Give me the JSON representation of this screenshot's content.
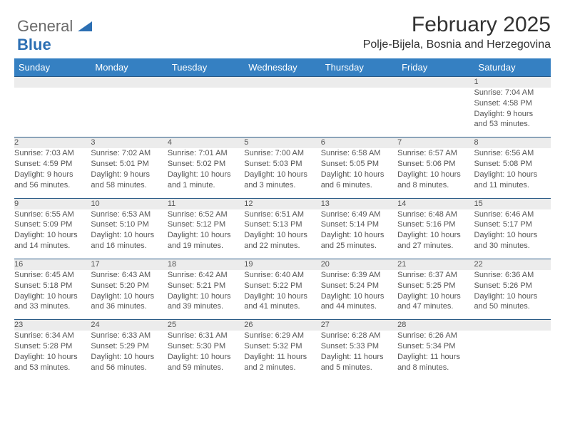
{
  "logo": {
    "word1": "General",
    "word2": "Blue"
  },
  "title": "February 2025",
  "location": "Polje-Bijela, Bosnia and Herzegovina",
  "header_bg": "#3580c2",
  "header_text_color": "#ffffff",
  "daynum_bg": "#ececec",
  "border_color": "#2a5a86",
  "body_text_color": "#555555",
  "font_family": "Arial, Helvetica, sans-serif",
  "days": [
    "Sunday",
    "Monday",
    "Tuesday",
    "Wednesday",
    "Thursday",
    "Friday",
    "Saturday"
  ],
  "weeks": [
    [
      null,
      null,
      null,
      null,
      null,
      null,
      {
        "n": "1",
        "sr": "Sunrise: 7:04 AM",
        "ss": "Sunset: 4:58 PM",
        "d1": "Daylight: 9 hours",
        "d2": "and 53 minutes."
      }
    ],
    [
      {
        "n": "2",
        "sr": "Sunrise: 7:03 AM",
        "ss": "Sunset: 4:59 PM",
        "d1": "Daylight: 9 hours",
        "d2": "and 56 minutes."
      },
      {
        "n": "3",
        "sr": "Sunrise: 7:02 AM",
        "ss": "Sunset: 5:01 PM",
        "d1": "Daylight: 9 hours",
        "d2": "and 58 minutes."
      },
      {
        "n": "4",
        "sr": "Sunrise: 7:01 AM",
        "ss": "Sunset: 5:02 PM",
        "d1": "Daylight: 10 hours",
        "d2": "and 1 minute."
      },
      {
        "n": "5",
        "sr": "Sunrise: 7:00 AM",
        "ss": "Sunset: 5:03 PM",
        "d1": "Daylight: 10 hours",
        "d2": "and 3 minutes."
      },
      {
        "n": "6",
        "sr": "Sunrise: 6:58 AM",
        "ss": "Sunset: 5:05 PM",
        "d1": "Daylight: 10 hours",
        "d2": "and 6 minutes."
      },
      {
        "n": "7",
        "sr": "Sunrise: 6:57 AM",
        "ss": "Sunset: 5:06 PM",
        "d1": "Daylight: 10 hours",
        "d2": "and 8 minutes."
      },
      {
        "n": "8",
        "sr": "Sunrise: 6:56 AM",
        "ss": "Sunset: 5:08 PM",
        "d1": "Daylight: 10 hours",
        "d2": "and 11 minutes."
      }
    ],
    [
      {
        "n": "9",
        "sr": "Sunrise: 6:55 AM",
        "ss": "Sunset: 5:09 PM",
        "d1": "Daylight: 10 hours",
        "d2": "and 14 minutes."
      },
      {
        "n": "10",
        "sr": "Sunrise: 6:53 AM",
        "ss": "Sunset: 5:10 PM",
        "d1": "Daylight: 10 hours",
        "d2": "and 16 minutes."
      },
      {
        "n": "11",
        "sr": "Sunrise: 6:52 AM",
        "ss": "Sunset: 5:12 PM",
        "d1": "Daylight: 10 hours",
        "d2": "and 19 minutes."
      },
      {
        "n": "12",
        "sr": "Sunrise: 6:51 AM",
        "ss": "Sunset: 5:13 PM",
        "d1": "Daylight: 10 hours",
        "d2": "and 22 minutes."
      },
      {
        "n": "13",
        "sr": "Sunrise: 6:49 AM",
        "ss": "Sunset: 5:14 PM",
        "d1": "Daylight: 10 hours",
        "d2": "and 25 minutes."
      },
      {
        "n": "14",
        "sr": "Sunrise: 6:48 AM",
        "ss": "Sunset: 5:16 PM",
        "d1": "Daylight: 10 hours",
        "d2": "and 27 minutes."
      },
      {
        "n": "15",
        "sr": "Sunrise: 6:46 AM",
        "ss": "Sunset: 5:17 PM",
        "d1": "Daylight: 10 hours",
        "d2": "and 30 minutes."
      }
    ],
    [
      {
        "n": "16",
        "sr": "Sunrise: 6:45 AM",
        "ss": "Sunset: 5:18 PM",
        "d1": "Daylight: 10 hours",
        "d2": "and 33 minutes."
      },
      {
        "n": "17",
        "sr": "Sunrise: 6:43 AM",
        "ss": "Sunset: 5:20 PM",
        "d1": "Daylight: 10 hours",
        "d2": "and 36 minutes."
      },
      {
        "n": "18",
        "sr": "Sunrise: 6:42 AM",
        "ss": "Sunset: 5:21 PM",
        "d1": "Daylight: 10 hours",
        "d2": "and 39 minutes."
      },
      {
        "n": "19",
        "sr": "Sunrise: 6:40 AM",
        "ss": "Sunset: 5:22 PM",
        "d1": "Daylight: 10 hours",
        "d2": "and 41 minutes."
      },
      {
        "n": "20",
        "sr": "Sunrise: 6:39 AM",
        "ss": "Sunset: 5:24 PM",
        "d1": "Daylight: 10 hours",
        "d2": "and 44 minutes."
      },
      {
        "n": "21",
        "sr": "Sunrise: 6:37 AM",
        "ss": "Sunset: 5:25 PM",
        "d1": "Daylight: 10 hours",
        "d2": "and 47 minutes."
      },
      {
        "n": "22",
        "sr": "Sunrise: 6:36 AM",
        "ss": "Sunset: 5:26 PM",
        "d1": "Daylight: 10 hours",
        "d2": "and 50 minutes."
      }
    ],
    [
      {
        "n": "23",
        "sr": "Sunrise: 6:34 AM",
        "ss": "Sunset: 5:28 PM",
        "d1": "Daylight: 10 hours",
        "d2": "and 53 minutes."
      },
      {
        "n": "24",
        "sr": "Sunrise: 6:33 AM",
        "ss": "Sunset: 5:29 PM",
        "d1": "Daylight: 10 hours",
        "d2": "and 56 minutes."
      },
      {
        "n": "25",
        "sr": "Sunrise: 6:31 AM",
        "ss": "Sunset: 5:30 PM",
        "d1": "Daylight: 10 hours",
        "d2": "and 59 minutes."
      },
      {
        "n": "26",
        "sr": "Sunrise: 6:29 AM",
        "ss": "Sunset: 5:32 PM",
        "d1": "Daylight: 11 hours",
        "d2": "and 2 minutes."
      },
      {
        "n": "27",
        "sr": "Sunrise: 6:28 AM",
        "ss": "Sunset: 5:33 PM",
        "d1": "Daylight: 11 hours",
        "d2": "and 5 minutes."
      },
      {
        "n": "28",
        "sr": "Sunrise: 6:26 AM",
        "ss": "Sunset: 5:34 PM",
        "d1": "Daylight: 11 hours",
        "d2": "and 8 minutes."
      },
      null
    ]
  ]
}
